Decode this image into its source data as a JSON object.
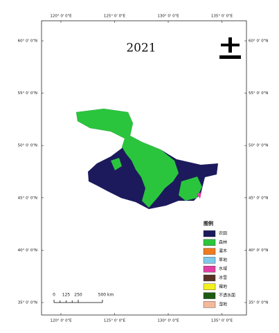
{
  "map": {
    "title": "2021",
    "lon_labels": [
      "120° 0' 0\"E",
      "125° 0' 0\"E",
      "130° 0' 0\"E",
      "135° 0' 0\"E"
    ],
    "lat_labels": [
      "60° 0' 0\"N",
      "55° 0' 0\"N",
      "50° 0' 0\"N",
      "45° 0' 0\"N",
      "40° 0' 0\"N",
      "35° 0' 0\"N"
    ],
    "scale_bar": [
      "0",
      "125",
      "250",
      "500 km"
    ],
    "legend": {
      "title": "图例",
      "items": [
        {
          "label": "农田",
          "color": "#1c1a5c"
        },
        {
          "label": "森林",
          "color": "#2bc53d"
        },
        {
          "label": "灌木",
          "color": "#f07a1e"
        },
        {
          "label": "草地",
          "color": "#7fc9ea"
        },
        {
          "label": "水域",
          "color": "#e03fa3"
        },
        {
          "label": "冰雪",
          "color": "#5a3225"
        },
        {
          "label": "裸地",
          "color": "#f3f020"
        },
        {
          "label": "不透水面",
          "color": "#1d5a12"
        },
        {
          "label": "湿地",
          "color": "#f4b99b"
        }
      ]
    }
  }
}
